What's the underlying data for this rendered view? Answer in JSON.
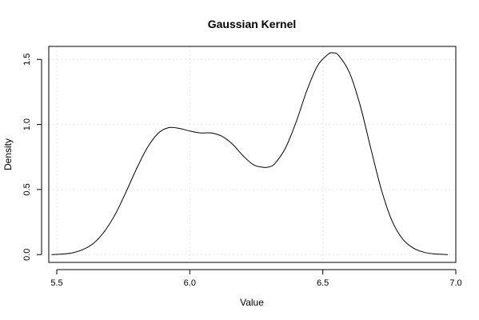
{
  "chart_data": {
    "type": "line",
    "title": "Gaussian Kernel",
    "xlabel": "Value",
    "ylabel": "Density",
    "xlim": [
      5.47,
      7.0
    ],
    "ylim": [
      -0.06,
      1.6
    ],
    "xticks": [
      5.5,
      6.0,
      6.5,
      7.0
    ],
    "xtick_labels": [
      "5.5",
      "6.0",
      "6.5",
      "7.0"
    ],
    "yticks": [
      0.0,
      0.5,
      1.0,
      1.5
    ],
    "ytick_labels": [
      "0.0",
      "0.5",
      "1.0",
      "1.5"
    ],
    "grid": true,
    "series": [
      {
        "x": [
          5.48,
          5.52,
          5.56,
          5.6,
          5.64,
          5.68,
          5.72,
          5.76,
          5.8,
          5.84,
          5.88,
          5.92,
          5.96,
          6.0,
          6.04,
          6.08,
          6.12,
          6.16,
          6.2,
          6.24,
          6.28,
          6.3,
          6.32,
          6.36,
          6.4,
          6.44,
          6.48,
          6.52,
          6.54,
          6.56,
          6.6,
          6.64,
          6.68,
          6.72,
          6.76,
          6.8,
          6.84,
          6.88,
          6.92,
          6.97
        ],
        "y": [
          0.0,
          0.004,
          0.014,
          0.04,
          0.09,
          0.18,
          0.31,
          0.48,
          0.66,
          0.82,
          0.93,
          0.975,
          0.97,
          0.95,
          0.935,
          0.935,
          0.91,
          0.85,
          0.76,
          0.69,
          0.67,
          0.675,
          0.7,
          0.82,
          1.02,
          1.26,
          1.45,
          1.54,
          1.55,
          1.53,
          1.4,
          1.15,
          0.82,
          0.5,
          0.26,
          0.12,
          0.05,
          0.018,
          0.005,
          0.0
        ]
      }
    ]
  }
}
